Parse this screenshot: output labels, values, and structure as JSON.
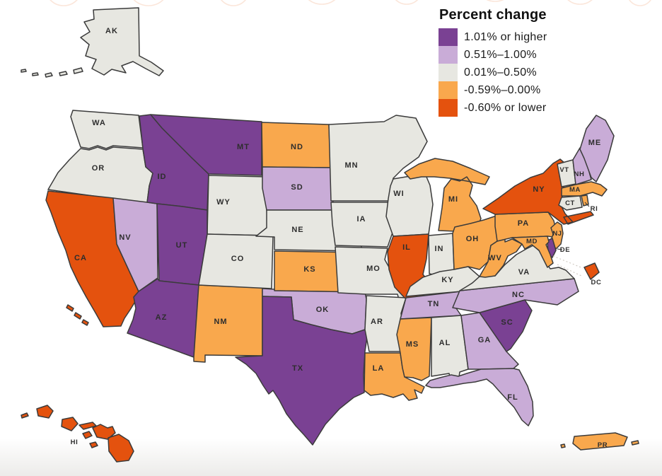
{
  "legend": {
    "title": "Percent change",
    "items": [
      {
        "id": "p1",
        "label": "1.01% or higher",
        "color": "#7A4193"
      },
      {
        "id": "p2",
        "label": "0.51%–1.00%",
        "color": "#C9ACD7"
      },
      {
        "id": "p3",
        "label": "0.01%–0.50%",
        "color": "#E7E7E1"
      },
      {
        "id": "p4",
        "label": "-0.59%–0.00%",
        "color": "#F9A84D"
      },
      {
        "id": "p5",
        "label": "-0.60% or lower",
        "color": "#E4520E"
      }
    ]
  },
  "map": {
    "states": [
      {
        "abbr": "AK",
        "category": "p3"
      },
      {
        "abbr": "WA",
        "category": "p3"
      },
      {
        "abbr": "OR",
        "category": "p3"
      },
      {
        "abbr": "CA",
        "category": "p5"
      },
      {
        "abbr": "NV",
        "category": "p2"
      },
      {
        "abbr": "ID",
        "category": "p1"
      },
      {
        "abbr": "MT",
        "category": "p1"
      },
      {
        "abbr": "WY",
        "category": "p3"
      },
      {
        "abbr": "UT",
        "category": "p1"
      },
      {
        "abbr": "AZ",
        "category": "p1"
      },
      {
        "abbr": "NM",
        "category": "p4"
      },
      {
        "abbr": "CO",
        "category": "p3"
      },
      {
        "abbr": "ND",
        "category": "p4"
      },
      {
        "abbr": "SD",
        "category": "p2"
      },
      {
        "abbr": "NE",
        "category": "p3"
      },
      {
        "abbr": "KS",
        "category": "p4"
      },
      {
        "abbr": "OK",
        "category": "p2"
      },
      {
        "abbr": "TX",
        "category": "p1"
      },
      {
        "abbr": "MN",
        "category": "p3"
      },
      {
        "abbr": "IA",
        "category": "p3"
      },
      {
        "abbr": "MO",
        "category": "p3"
      },
      {
        "abbr": "AR",
        "category": "p3"
      },
      {
        "abbr": "LA",
        "category": "p4"
      },
      {
        "abbr": "WI",
        "category": "p3"
      },
      {
        "abbr": "MI",
        "category": "p4"
      },
      {
        "abbr": "IL",
        "category": "p5"
      },
      {
        "abbr": "IN",
        "category": "p3"
      },
      {
        "abbr": "OH",
        "category": "p4"
      },
      {
        "abbr": "KY",
        "category": "p3"
      },
      {
        "abbr": "TN",
        "category": "p2"
      },
      {
        "abbr": "MS",
        "category": "p4"
      },
      {
        "abbr": "AL",
        "category": "p3"
      },
      {
        "abbr": "GA",
        "category": "p2"
      },
      {
        "abbr": "FL",
        "category": "p2"
      },
      {
        "abbr": "SC",
        "category": "p1"
      },
      {
        "abbr": "NC",
        "category": "p2"
      },
      {
        "abbr": "VA",
        "category": "p3"
      },
      {
        "abbr": "WV",
        "category": "p4"
      },
      {
        "abbr": "PA",
        "category": "p4"
      },
      {
        "abbr": "NY",
        "category": "p5"
      },
      {
        "abbr": "NJ",
        "category": "p4"
      },
      {
        "abbr": "DE",
        "category": "p1"
      },
      {
        "abbr": "MD",
        "category": "p4"
      },
      {
        "abbr": "DC",
        "category": "p5"
      },
      {
        "abbr": "VT",
        "category": "p3"
      },
      {
        "abbr": "NH",
        "category": "p2"
      },
      {
        "abbr": "ME",
        "category": "p2"
      },
      {
        "abbr": "MA",
        "category": "p4"
      },
      {
        "abbr": "CT",
        "category": "p3"
      },
      {
        "abbr": "RI",
        "category": "p4"
      },
      {
        "abbr": "HI",
        "category": "p5"
      },
      {
        "abbr": "PR",
        "category": "p4"
      }
    ]
  }
}
